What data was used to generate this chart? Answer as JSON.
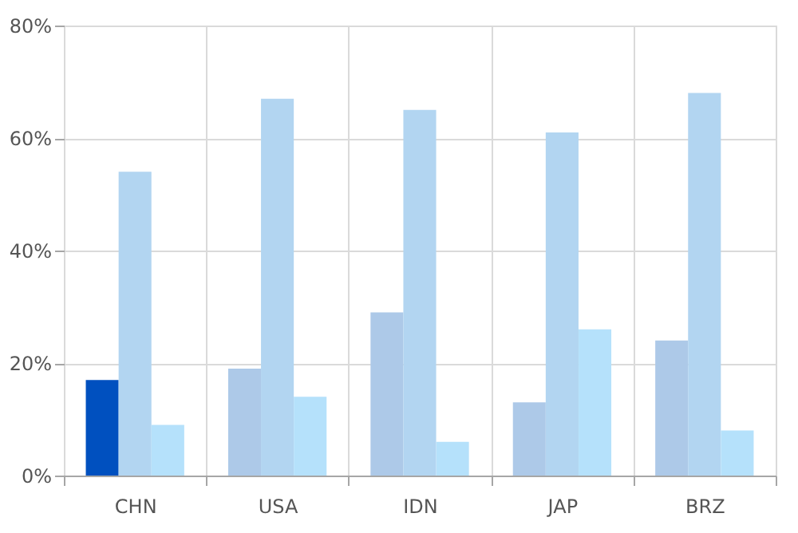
{
  "chart_data": {
    "type": "bar",
    "categories": [
      "CHN",
      "USA",
      "IDN",
      "JAP",
      "BRZ"
    ],
    "series": [
      {
        "color": "#adc9e8",
        "colors": [
          "#0050bf",
          null,
          null,
          null,
          null
        ],
        "values": [
          17,
          19,
          29,
          13,
          24
        ]
      },
      {
        "color": "#b2d5f1",
        "values": [
          54,
          67,
          65,
          61,
          68
        ]
      },
      {
        "color": "#b5e1fb",
        "values": [
          9,
          14,
          6,
          26,
          8
        ]
      }
    ],
    "ylim": [
      0,
      80
    ],
    "yticks": [
      {
        "value": 0,
        "label": "0%"
      },
      {
        "value": 20,
        "label": "20%"
      },
      {
        "value": 40,
        "label": "40%"
      },
      {
        "value": 60,
        "label": "60%"
      },
      {
        "value": 80,
        "label": "80%"
      }
    ],
    "grid": true
  }
}
